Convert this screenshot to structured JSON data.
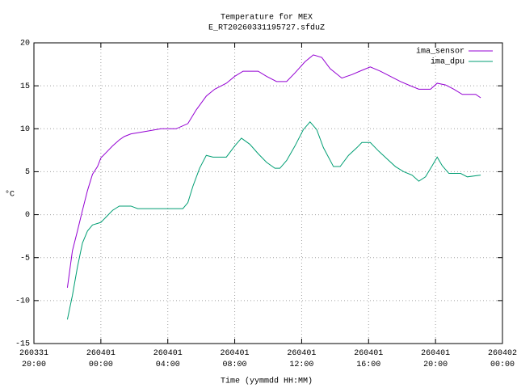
{
  "chart_data": {
    "type": "line",
    "title": "Temperature for MEX",
    "subtitle": "E_RT20260331195727.sfduZ",
    "xlabel": "Time (yymmdd HH:MM)",
    "ylabel": "°C",
    "xlim": [
      20,
      48
    ],
    "xticks": [
      {
        "value": 20,
        "label": "260331\n20:00"
      },
      {
        "value": 24,
        "label": "260401\n00:00"
      },
      {
        "value": 28,
        "label": "260401\n04:00"
      },
      {
        "value": 32,
        "label": "260401\n08:00"
      },
      {
        "value": 36,
        "label": "260401\n12:00"
      },
      {
        "value": 40,
        "label": "260401\n16:00"
      },
      {
        "value": 44,
        "label": "260401\n20:00"
      },
      {
        "value": 48,
        "label": "260402\n00:00"
      }
    ],
    "ylim": [
      -15,
      20
    ],
    "yticks": [
      -15,
      -10,
      -5,
      0,
      5,
      10,
      15,
      20
    ],
    "grid": true,
    "legend": "top-right",
    "series": [
      {
        "name": "ima_sensor",
        "color": "#9400d3",
        "x": [
          22.0,
          22.3,
          22.6,
          22.9,
          23.2,
          23.5,
          23.8,
          24.0,
          24.3,
          24.7,
          25.1,
          25.4,
          25.8,
          26.7,
          27.6,
          28.5,
          29.2,
          29.7,
          30.3,
          30.8,
          31.5,
          32.0,
          32.5,
          33.4,
          33.9,
          34.5,
          35.1,
          35.6,
          36.2,
          36.7,
          37.2,
          37.7,
          38.4,
          39.0,
          39.6,
          40.1,
          40.7,
          41.3,
          41.9,
          42.5,
          43.0,
          43.7,
          44.1,
          44.6,
          45.1,
          45.6,
          46.4,
          46.7
        ],
        "values": [
          -8.5,
          -4.2,
          -1.9,
          0.5,
          2.8,
          4.7,
          5.6,
          6.6,
          7.2,
          8.0,
          8.7,
          9.1,
          9.4,
          9.7,
          10.0,
          10.0,
          10.6,
          12.2,
          13.8,
          14.6,
          15.3,
          16.1,
          16.7,
          16.7,
          16.1,
          15.5,
          15.5,
          16.5,
          17.8,
          18.6,
          18.3,
          17.0,
          15.9,
          16.3,
          16.8,
          17.2,
          16.7,
          16.1,
          15.5,
          15.0,
          14.6,
          14.6,
          15.3,
          15.1,
          14.6,
          14.0,
          14.0,
          13.6
        ]
      },
      {
        "name": "ima_dpu",
        "color": "#009e73",
        "x": [
          22.0,
          22.3,
          22.6,
          22.9,
          23.2,
          23.5,
          24.0,
          24.3,
          24.7,
          25.1,
          25.8,
          26.2,
          27.6,
          28.9,
          29.2,
          29.5,
          29.9,
          30.3,
          30.7,
          31.5,
          32.0,
          32.4,
          32.9,
          33.4,
          33.9,
          34.4,
          34.7,
          35.1,
          35.6,
          36.1,
          36.5,
          36.9,
          37.3,
          37.9,
          38.3,
          38.8,
          39.3,
          39.6,
          40.1,
          40.6,
          41.1,
          41.6,
          42.1,
          42.6,
          43.0,
          43.4,
          43.8,
          44.1,
          44.4,
          44.8,
          45.5,
          45.9,
          46.7
        ],
        "values": [
          -12.2,
          -9.4,
          -6.1,
          -3.3,
          -1.9,
          -1.2,
          -0.9,
          -0.3,
          0.5,
          1.0,
          1.0,
          0.7,
          0.7,
          0.7,
          1.4,
          3.3,
          5.4,
          6.9,
          6.7,
          6.7,
          8.0,
          8.9,
          8.2,
          7.1,
          6.1,
          5.4,
          5.4,
          6.3,
          8.0,
          9.9,
          10.8,
          9.9,
          7.8,
          5.6,
          5.6,
          6.9,
          7.8,
          8.4,
          8.4,
          7.4,
          6.5,
          5.6,
          5.0,
          4.6,
          3.9,
          4.4,
          5.7,
          6.7,
          5.7,
          4.8,
          4.8,
          4.4,
          4.6
        ]
      }
    ]
  }
}
